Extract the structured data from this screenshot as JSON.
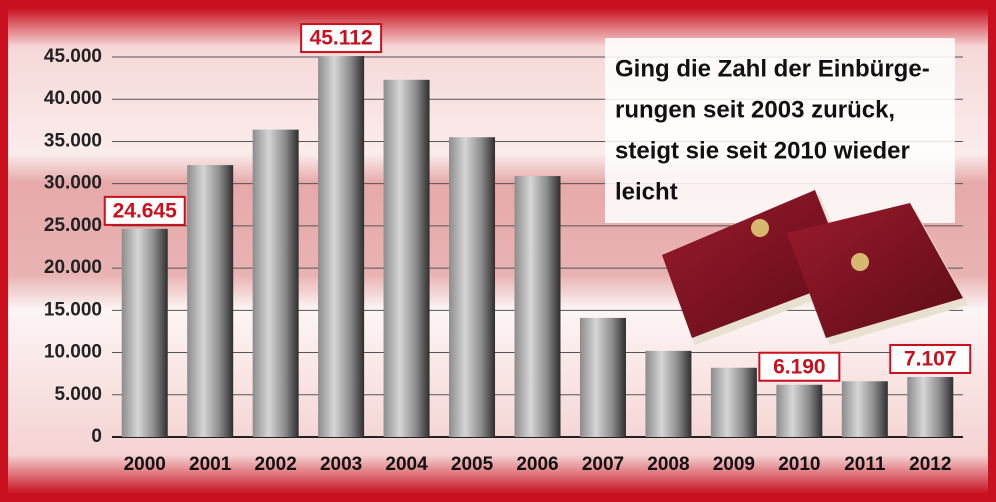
{
  "chart_data": {
    "type": "bar",
    "categories": [
      "2000",
      "2001",
      "2002",
      "2003",
      "2004",
      "2005",
      "2006",
      "2007",
      "2008",
      "2009",
      "2010",
      "2011",
      "2012"
    ],
    "values": [
      24645,
      32200,
      36400,
      45112,
      42300,
      35500,
      30900,
      14100,
      10200,
      8200,
      6190,
      6600,
      7107
    ],
    "value_labels": [
      "24.645",
      null,
      null,
      "45.112",
      null,
      null,
      null,
      null,
      null,
      null,
      "6.190",
      null,
      "7.107"
    ],
    "color": "#8c8c8c",
    "ylim": [
      0,
      45000
    ],
    "yticks": [
      0,
      {
        "value": 5000,
        "label": "5.000"
      },
      {
        "value": 10000,
        "label": "10.000"
      },
      {
        "value": 15000,
        "label": "15.000"
      },
      {
        "value": 20000,
        "label": "20.000"
      },
      {
        "value": 25000,
        "label": "25.000"
      },
      {
        "value": 30000,
        "label": "30.000"
      },
      {
        "value": 35000,
        "label": "35.000"
      },
      {
        "value": 40000,
        "label": "40.000"
      },
      {
        "value": 45000,
        "label": "45.000"
      }
    ],
    "grid": true,
    "annotation": [
      "Ging die Zahl der Einbürge-",
      "rungen seit 2003 zurück,",
      "steigt sie seit 2010 wieder",
      "leicht"
    ]
  }
}
